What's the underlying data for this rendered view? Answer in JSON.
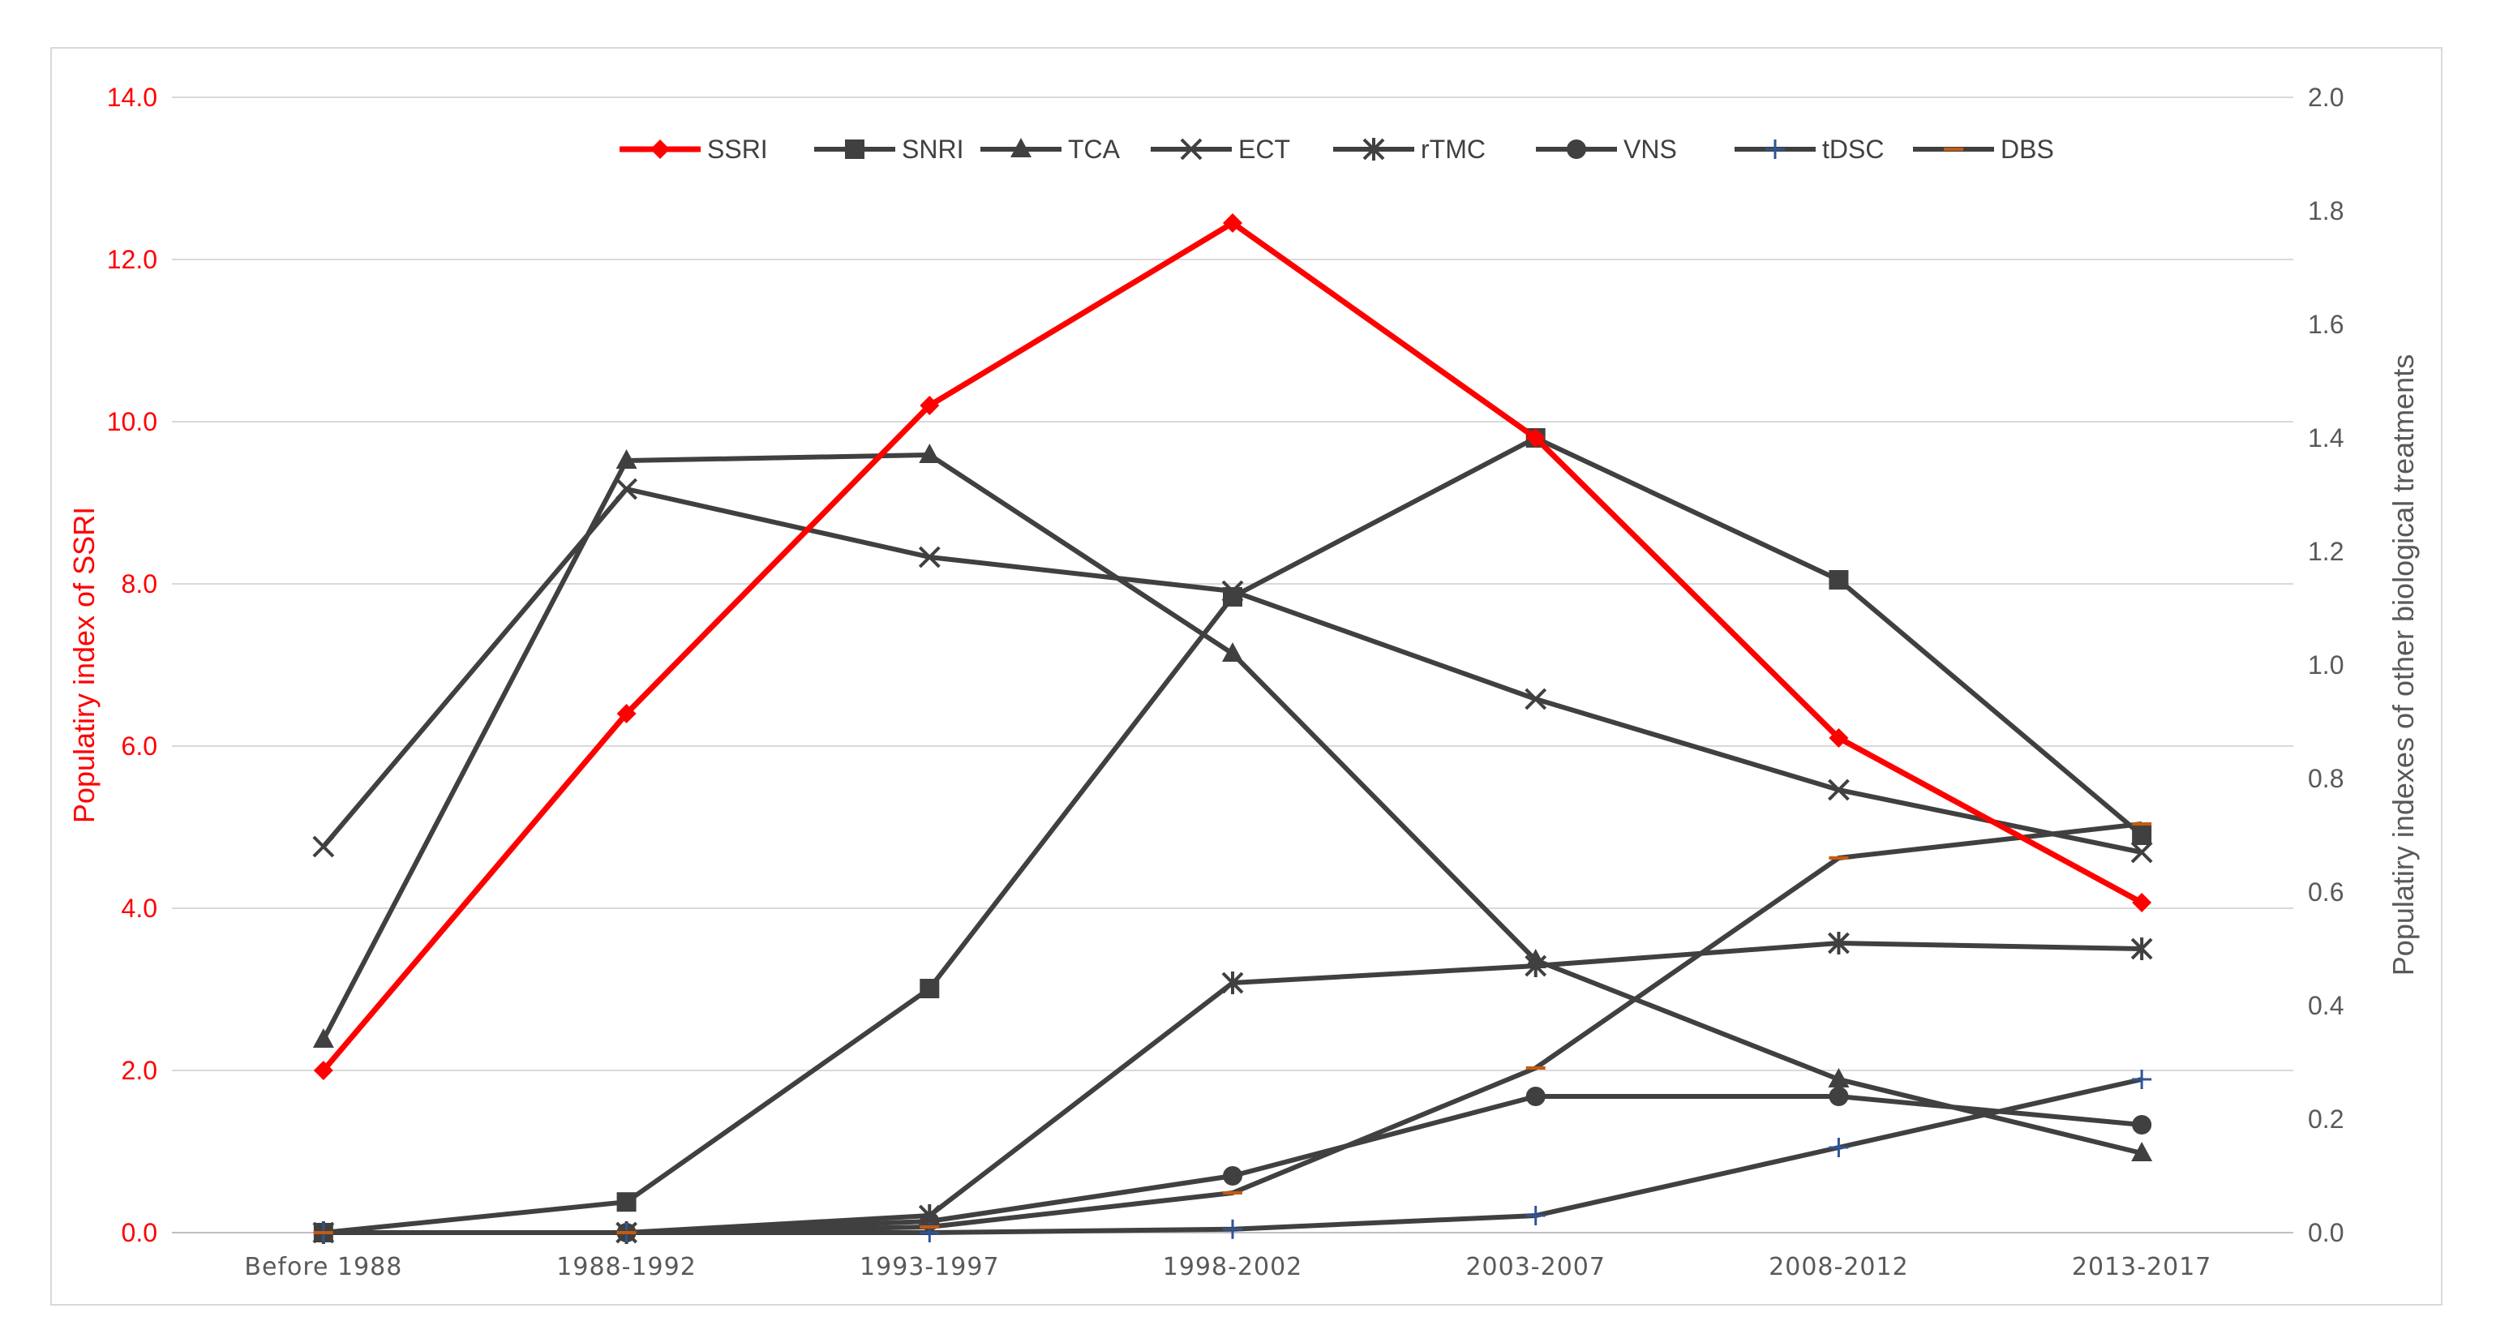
{
  "chart_data": {
    "type": "line",
    "categories": [
      "Before 1988",
      "1988-1992",
      "1993-1997",
      "1998-2002",
      "2003-2007",
      "2008-2012",
      "2013-2017"
    ],
    "y_left": {
      "label": "Populatiry index of SSRI",
      "range": [
        0,
        14
      ],
      "ticks": [
        "0.0",
        "2.0",
        "4.0",
        "6.0",
        "8.0",
        "10.0",
        "12.0",
        "14.0"
      ],
      "color": "#ff0000"
    },
    "y_right": {
      "label": "Populatiry indexes of other biological treatments",
      "range": [
        0,
        2
      ],
      "ticks": [
        "0.0",
        "0.2",
        "0.4",
        "0.6",
        "0.8",
        "1.0",
        "1.2",
        "1.4",
        "1.6",
        "1.8",
        "2.0"
      ],
      "color": "#595959"
    },
    "grid": "horizontal",
    "legend_position": "top",
    "series": [
      {
        "name": "SSRI",
        "axis": "left",
        "marker": "diamond",
        "color": "#ff0000",
        "values": [
          2.0,
          6.4,
          10.2,
          12.45,
          9.8,
          6.1,
          4.07
        ]
      },
      {
        "name": "SNRI",
        "axis": "right",
        "marker": "square",
        "color": "#404040",
        "values": [
          0.0,
          0.054,
          0.43,
          1.12,
          1.4,
          1.15,
          0.7
        ]
      },
      {
        "name": "TCA",
        "axis": "right",
        "marker": "triangle",
        "color": "#404040",
        "values": [
          0.34,
          1.36,
          1.37,
          1.02,
          0.48,
          0.27,
          0.14
        ]
      },
      {
        "name": "ECT",
        "axis": "right",
        "marker": "x",
        "color": "#404040",
        "values": [
          0.68,
          1.31,
          1.19,
          1.13,
          0.94,
          0.78,
          0.67
        ]
      },
      {
        "name": "rTMC",
        "axis": "right",
        "marker": "star",
        "color": "#404040",
        "values": [
          0.0,
          0.0,
          0.03,
          0.44,
          0.47,
          0.51,
          0.5
        ]
      },
      {
        "name": "VNS",
        "axis": "right",
        "marker": "circle",
        "color": "#404040",
        "values": [
          0.0,
          0.0,
          0.02,
          0.1,
          0.24,
          0.24,
          0.19
        ]
      },
      {
        "name": "tDSC",
        "axis": "right",
        "marker": "plus",
        "color": "#404040",
        "marker_color": "#2f5597",
        "values": [
          0.0,
          0.0,
          0.0,
          0.006,
          0.03,
          0.15,
          0.27
        ]
      },
      {
        "name": "DBS",
        "axis": "right",
        "marker": "dash",
        "color": "#404040",
        "marker_color": "#c55a11",
        "values": [
          0.0,
          0.0,
          0.01,
          0.07,
          0.29,
          0.66,
          0.72
        ]
      }
    ]
  }
}
